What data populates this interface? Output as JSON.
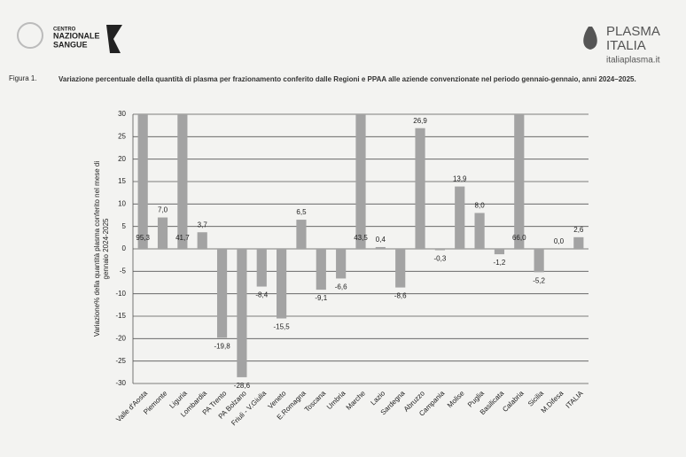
{
  "header": {
    "left_logo": [
      "CENTRO",
      "NAZIONALE",
      "SANGUE"
    ],
    "right_logo": [
      "PLASMA",
      "ITALIA"
    ],
    "right_url": "italiaplasma.it"
  },
  "figure_label": "Figura 1.",
  "chart_data": {
    "type": "bar",
    "title": "Variazione percentuale della quantità di plasma per frazionamento conferito dalle Regioni e PPAA alle aziende convenzionate nel periodo gennaio-gennaio, anni 2024–2025.",
    "y_label": [
      "Variazione% della quantità plasma conferito nel mese di",
      "gennaio 2024-2025"
    ],
    "categories": [
      "Valle d'Aosta",
      "Piemonte",
      "Liguria",
      "Lombardia",
      "PA Trento",
      "PA Bolzano",
      "Friuli - V.Giulia",
      "Veneto",
      "E.Romagna",
      "Toscana",
      "Umbria",
      "Marche",
      "Lazio",
      "Sardegna",
      "Abruzzo",
      "Campania",
      "Molise",
      "Puglia",
      "Basilicata",
      "Calabria",
      "Sicilia",
      "M.Difesa",
      "ITALIA"
    ],
    "values": [
      95.3,
      7.0,
      41.7,
      3.7,
      -19.8,
      -28.6,
      -8.4,
      -15.5,
      6.5,
      -9.1,
      -6.6,
      43.5,
      0.4,
      -8.6,
      26.9,
      -0.3,
      13.9,
      8.0,
      -1.2,
      66.0,
      -5.2,
      0.0,
      2.6
    ],
    "value_labels": [
      "95,3",
      "7,0",
      "41,7",
      "3,7",
      "-19,8",
      "-28,6",
      "-8,4",
      "-15,5",
      "6,5",
      "-9,1",
      "-6,6",
      "43,5",
      "0,4",
      "-8,6",
      "26,9",
      "-0,3",
      "13,9",
      "8,0",
      "-1,2",
      "66,0",
      "-5,2",
      "0,0",
      "2,6"
    ],
    "color": "#a3a3a3",
    "ylim": [
      -30,
      30
    ],
    "yticks": [
      -30,
      -25,
      -20,
      -15,
      -10,
      -5,
      0,
      5,
      10,
      15,
      20,
      25,
      30
    ],
    "grid": true
  }
}
